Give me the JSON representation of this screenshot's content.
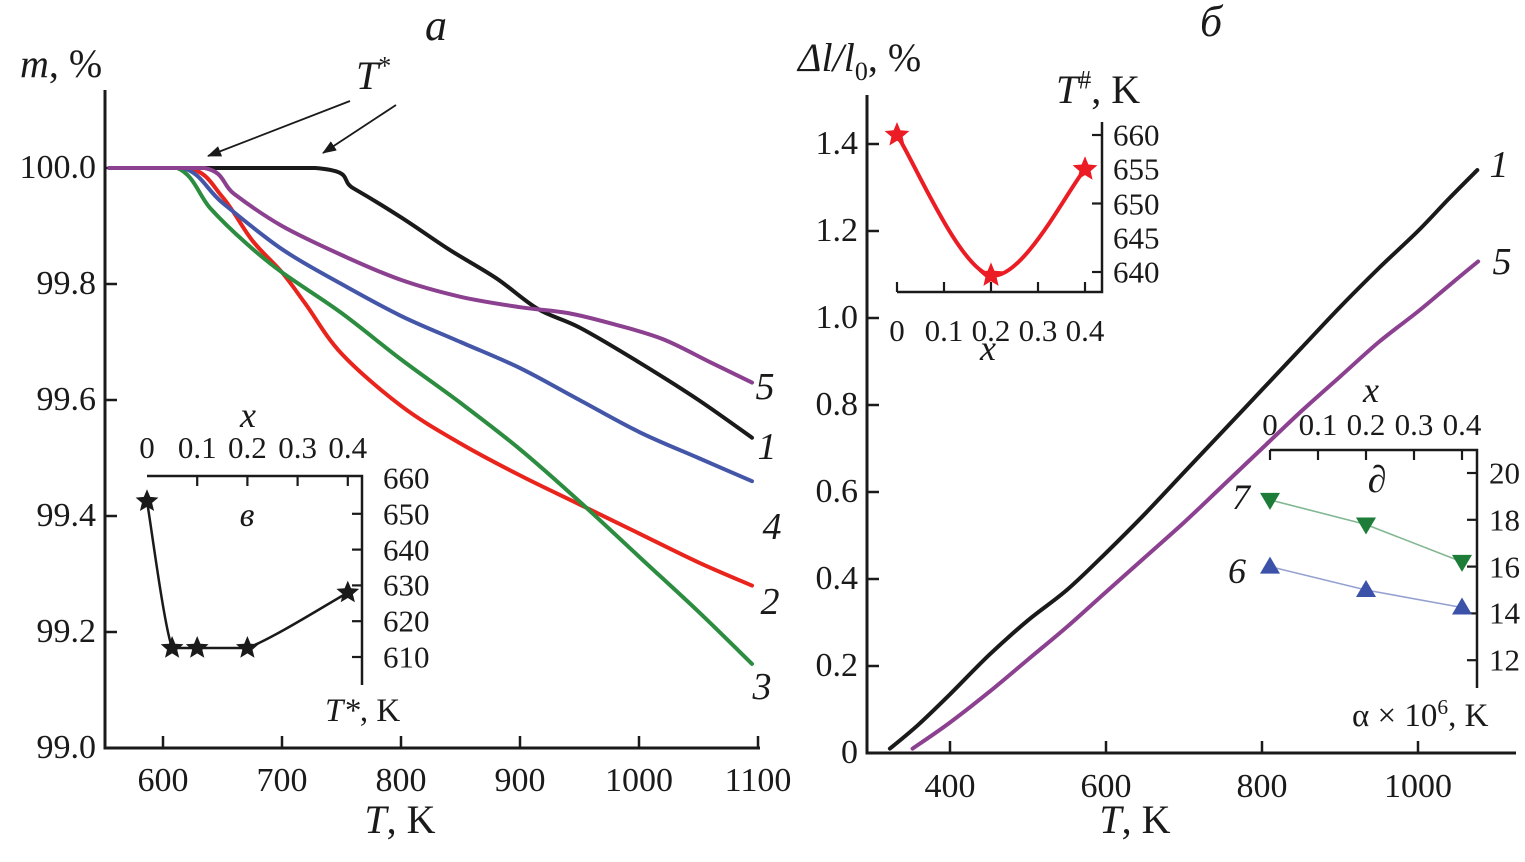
{
  "labels": {
    "a_ylabel": {
      "sym": "m",
      "unit": ", %"
    },
    "a_xlabel": {
      "sym": "T",
      "unit": ", K"
    },
    "b_ylabel": {
      "base": "Δl/l",
      "sub": "0",
      "unit": ", %"
    },
    "b_xlabel": {
      "sym": "T",
      "unit": ", K"
    },
    "tstar": {
      "base": "T",
      "sup": "*"
    },
    "v_inset_ylabel": {
      "base": "T*",
      "unit": ", K"
    },
    "t_inset_ylabel": {
      "base": "T",
      "sup": "#",
      "unit": ", K"
    },
    "alpha_inset_ylabel": {
      "base": "α × 10",
      "sup": "6",
      "unit": ", K"
    }
  },
  "chart_data": [
    {
      "id": "panel-a-main",
      "type": "line",
      "title": "a",
      "xlabel": "T, K",
      "ylabel": "m, %",
      "xlim": [
        553,
        1103
      ],
      "ylim": [
        99.0,
        100.1
      ],
      "grid": false,
      "xticks": [
        "600",
        "700",
        "800",
        "900",
        "1000",
        "1100"
      ],
      "yticks": [
        "100.0",
        "99.8",
        "99.6",
        "99.4",
        "99.2",
        "99.0"
      ],
      "annotation": "T*",
      "series": [
        {
          "name": "1",
          "color": "#1a1a1a",
          "points": [
            [
              555,
              100
            ],
            [
              728,
              100
            ],
            [
              760,
              99.965
            ],
            [
              800,
              99.915
            ],
            [
              840,
              99.86
            ],
            [
              880,
              99.81
            ],
            [
              915,
              99.757
            ],
            [
              950,
              99.725
            ],
            [
              1000,
              99.665
            ],
            [
              1050,
              99.6
            ],
            [
              1095,
              99.535
            ]
          ]
        },
        {
          "name": "2",
          "color": "#e8241d",
          "points": [
            [
              555,
              100
            ],
            [
              622,
              100
            ],
            [
              650,
              99.95
            ],
            [
              675,
              99.875
            ],
            [
              700,
              99.82
            ],
            [
              720,
              99.765
            ],
            [
              750,
              99.68
            ],
            [
              800,
              99.59
            ],
            [
              850,
              99.525
            ],
            [
              900,
              99.47
            ],
            [
              950,
              99.42
            ],
            [
              1000,
              99.37
            ],
            [
              1050,
              99.32
            ],
            [
              1095,
              99.28
            ]
          ]
        },
        {
          "name": "3",
          "color": "#2c8c40",
          "points": [
            [
              555,
              100
            ],
            [
              612,
              100
            ],
            [
              640,
              99.93
            ],
            [
              670,
              99.87
            ],
            [
              700,
              99.82
            ],
            [
              750,
              99.75
            ],
            [
              800,
              99.67
            ],
            [
              850,
              99.595
            ],
            [
              900,
              99.515
            ],
            [
              950,
              99.425
            ],
            [
              1000,
              99.33
            ],
            [
              1050,
              99.235
            ],
            [
              1095,
              99.145
            ]
          ]
        },
        {
          "name": "4",
          "color": "#4456a8",
          "points": [
            [
              555,
              100
            ],
            [
              617,
              100
            ],
            [
              650,
              99.94
            ],
            [
              700,
              99.86
            ],
            [
              750,
              99.8
            ],
            [
              800,
              99.745
            ],
            [
              850,
              99.7
            ],
            [
              900,
              99.655
            ],
            [
              950,
              99.6
            ],
            [
              1000,
              99.545
            ],
            [
              1050,
              99.5
            ],
            [
              1095,
              99.46
            ]
          ]
        },
        {
          "name": "5",
          "color": "#8c4190",
          "points": [
            [
              555,
              100
            ],
            [
              635,
              100
            ],
            [
              660,
              99.955
            ],
            [
              700,
              99.9
            ],
            [
              750,
              99.85
            ],
            [
              800,
              99.807
            ],
            [
              850,
              99.778
            ],
            [
              900,
              99.76
            ],
            [
              940,
              99.75
            ],
            [
              980,
              99.73
            ],
            [
              1020,
              99.705
            ],
            [
              1060,
              99.665
            ],
            [
              1095,
              99.63
            ]
          ]
        }
      ]
    },
    {
      "id": "panel-a-inset",
      "type": "line+scatter",
      "label": "в",
      "xlabel": "x",
      "ylabel": "T*, K",
      "marker": "star",
      "color": "#1a1a1a",
      "xticks": [
        "0",
        "0.1",
        "0.2",
        "0.3",
        "0.4"
      ],
      "yticks": [
        "660",
        "650",
        "640",
        "630",
        "620",
        "610"
      ],
      "points": [
        [
          0,
          653.5
        ],
        [
          0.05,
          612.5
        ],
        [
          0.1,
          612.5
        ],
        [
          0.2,
          612.5
        ],
        [
          0.4,
          628
        ]
      ]
    },
    {
      "id": "panel-b-main",
      "type": "line",
      "title": "б",
      "xlabel": "T, K",
      "ylabel": "Δl/l0, %",
      "xlim": [
        294,
        1100
      ],
      "ylim": [
        0,
        1.5
      ],
      "grid": false,
      "xticks": [
        "400",
        "600",
        "800",
        "1000"
      ],
      "yticks": [
        "1.4",
        "1.2",
        "1.0",
        "0.8",
        "0.6",
        "0.4",
        "0.2",
        "0"
      ],
      "series": [
        {
          "name": "1",
          "color": "#1a1a1a",
          "points": [
            [
              323,
              0.01
            ],
            [
              360,
              0.066
            ],
            [
              400,
              0.135
            ],
            [
              450,
              0.225
            ],
            [
              500,
              0.305
            ],
            [
              550,
              0.375
            ],
            [
              600,
              0.46
            ],
            [
              650,
              0.55
            ],
            [
              700,
              0.645
            ],
            [
              750,
              0.74
            ],
            [
              800,
              0.835
            ],
            [
              850,
              0.93
            ],
            [
              900,
              1.025
            ],
            [
              950,
              1.115
            ],
            [
              1000,
              1.2
            ],
            [
              1040,
              1.275
            ],
            [
              1076,
              1.34
            ]
          ]
        },
        {
          "name": "5",
          "color": "#8c4190",
          "points": [
            [
              352,
              0.01
            ],
            [
              400,
              0.07
            ],
            [
              450,
              0.14
            ],
            [
              500,
              0.215
            ],
            [
              550,
              0.29
            ],
            [
              600,
              0.37
            ],
            [
              650,
              0.45
            ],
            [
              700,
              0.53
            ],
            [
              750,
              0.615
            ],
            [
              800,
              0.7
            ],
            [
              850,
              0.785
            ],
            [
              900,
              0.865
            ],
            [
              950,
              0.945
            ],
            [
              1000,
              1.015
            ],
            [
              1040,
              1.075
            ],
            [
              1077,
              1.13
            ]
          ]
        }
      ]
    },
    {
      "id": "panel-b-top-inset",
      "type": "line+scatter",
      "xlabel": "x",
      "ylabel": "T#, K",
      "marker": "star",
      "color": "#ec1c24",
      "xticks": [
        "0",
        "0.1",
        "0.2",
        "0.3",
        "0.4"
      ],
      "yticks": [
        "660",
        "655",
        "650",
        "645",
        "640"
      ],
      "points": [
        [
          0,
          660
        ],
        [
          0.2,
          639.5
        ],
        [
          0.4,
          655
        ]
      ]
    },
    {
      "id": "panel-b-bottom-inset",
      "type": "line+scatter",
      "label": "∂",
      "xlabel": "x",
      "ylabel": "α × 10⁶, K",
      "xticks": [
        "0",
        "0.1",
        "0.2",
        "0.3",
        "0.4"
      ],
      "yticks": [
        "20",
        "18",
        "16",
        "14",
        "12"
      ],
      "series": [
        {
          "name": "7",
          "marker": "triangle-down",
          "color": "#1c7c38",
          "points": [
            [
              0,
              18.85
            ],
            [
              0.2,
              17.8
            ],
            [
              0.4,
              16.2
            ]
          ]
        },
        {
          "name": "6",
          "marker": "triangle-up",
          "color": "#3c52a8",
          "points": [
            [
              0,
              16.0
            ],
            [
              0.2,
              15.0
            ],
            [
              0.4,
              14.25
            ]
          ]
        }
      ]
    }
  ]
}
